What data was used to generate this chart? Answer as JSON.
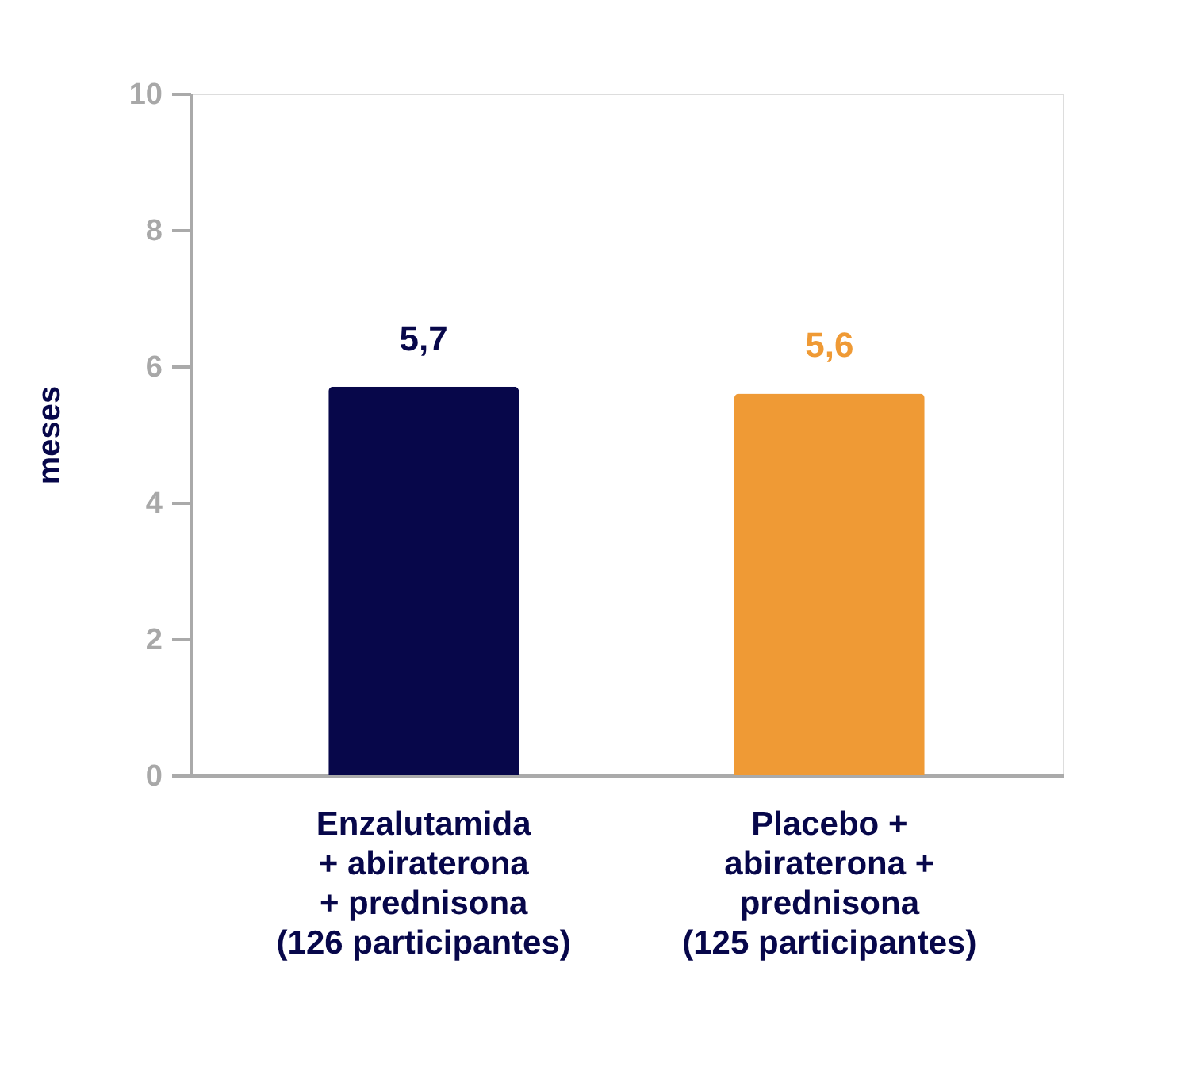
{
  "chart_data": {
    "type": "bar",
    "ylabel": "meses",
    "categories": [
      "Enzalutamida\n+ abiraterona\n+ prednisona\n(126 participantes)",
      "Placebo +\nabiraterona +\nprednisona\n(125 participantes)"
    ],
    "values": [
      5.7,
      5.6
    ],
    "colors": [
      "#07074a",
      "#ef9a35"
    ],
    "value_labels": [
      "5,7",
      "5,6"
    ],
    "ylim": [
      0,
      10
    ],
    "yticks": [
      0,
      2,
      4,
      6,
      8,
      10
    ],
    "grid": false,
    "legend": false
  }
}
